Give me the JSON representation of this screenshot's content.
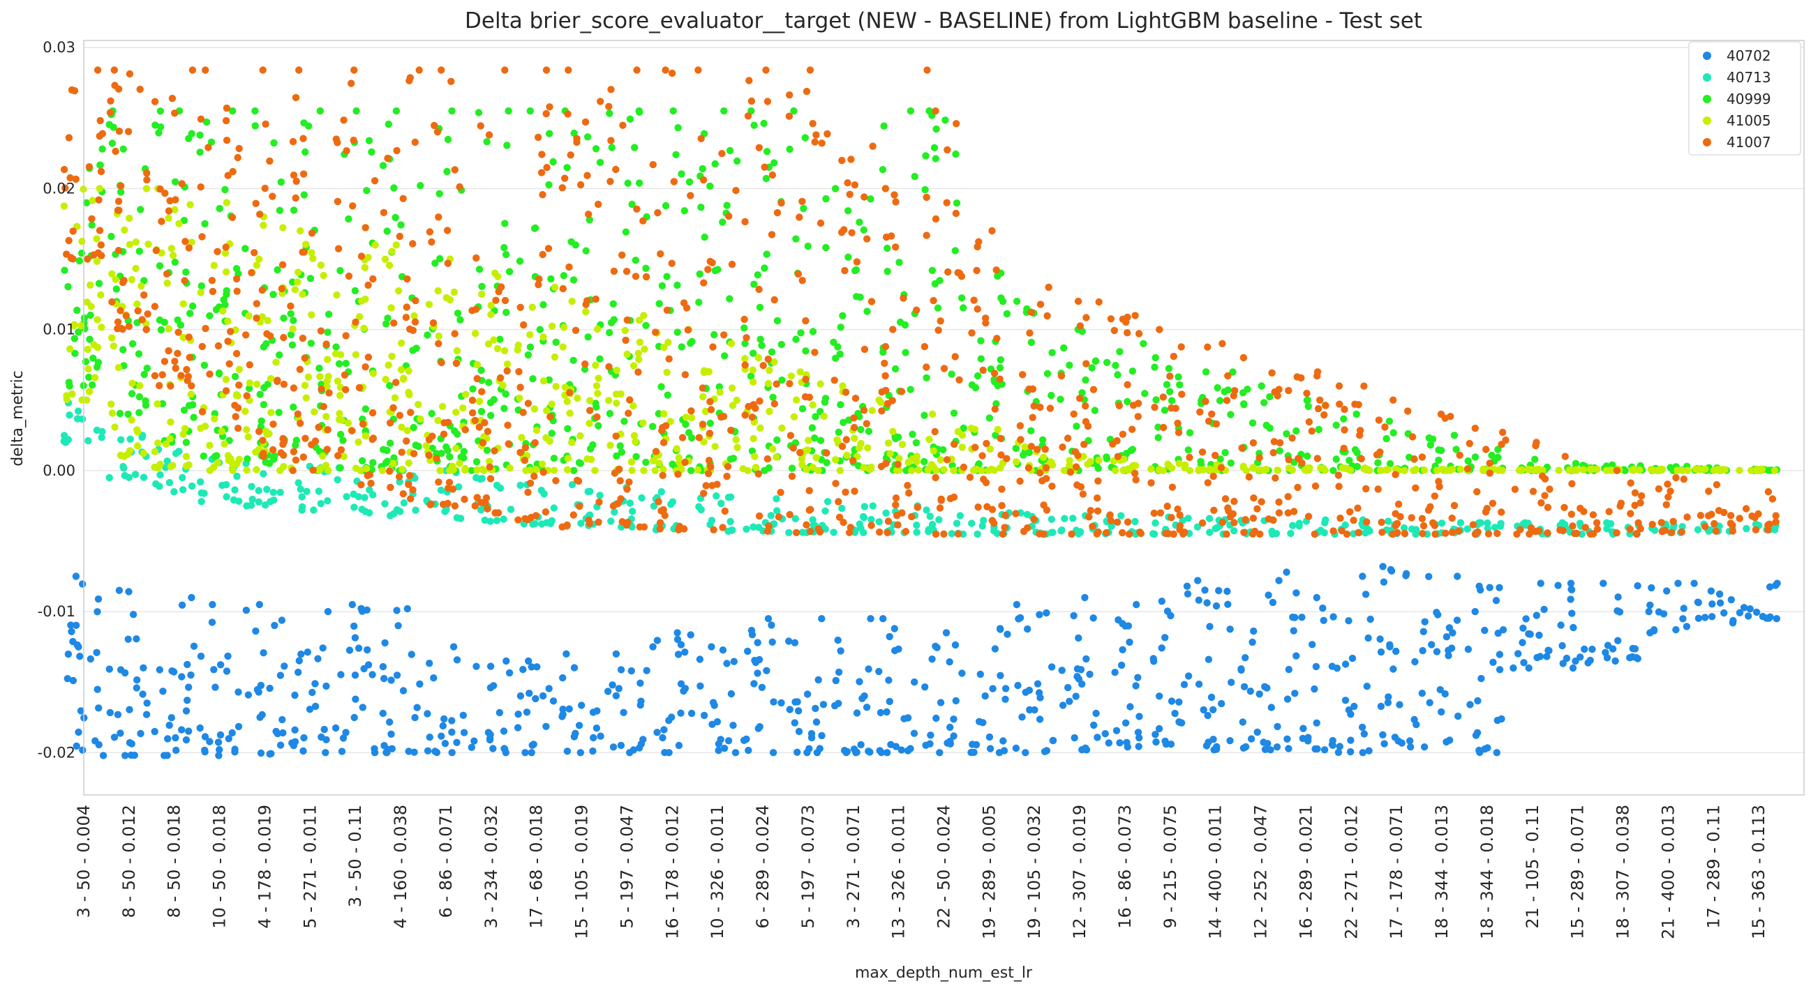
{
  "chart_data": {
    "type": "scatter",
    "title": "Delta brier_score_evaluator__target (NEW - BASELINE) from LightGBM baseline - Test set",
    "xlabel": "max_depth_num_est_lr",
    "ylabel": "delta_metric",
    "ylim": [
      -0.023,
      0.0305
    ],
    "yticks": [
      0.03,
      0.02,
      0.01,
      0.0,
      -0.01,
      -0.02
    ],
    "ytick_labels": [
      "0.03",
      "0.02",
      "0.01",
      "0.00",
      "-0.01",
      "-0.02"
    ],
    "grid": true,
    "legend_position": "top-right",
    "categories": [
      "3 - 50 - 0.004",
      "8 - 50 - 0.012",
      "8 - 50 - 0.018",
      "10 - 50 - 0.018",
      "4 - 178 - 0.019",
      "5 - 271 - 0.011",
      "3 - 50 - 0.11",
      "4 - 160 - 0.038",
      "6 - 86 - 0.071",
      "3 - 234 - 0.032",
      "17 - 68 - 0.018",
      "15 - 105 - 0.019",
      "5 - 197 - 0.047",
      "16 - 178 - 0.012",
      "10 - 326 - 0.011",
      "6 - 289 - 0.024",
      "5 - 197 - 0.073",
      "3 - 271 - 0.071",
      "13 - 326 - 0.011",
      "22 - 50 - 0.024",
      "19 - 289 - 0.005",
      "19 - 105 - 0.032",
      "12 - 307 - 0.019",
      "16 - 86 - 0.073",
      "9 - 215 - 0.075",
      "14 - 400 - 0.011",
      "12 - 252 - 0.047",
      "16 - 289 - 0.021",
      "22 - 271 - 0.012",
      "17 - 178 - 0.071",
      "18 - 344 - 0.013",
      "18 - 344 - 0.018",
      "21 - 105 - 0.11",
      "15 - 289 - 0.071",
      "18 - 307 - 0.038",
      "21 - 400 - 0.013",
      "17 - 289 - 0.11",
      "15 - 363 - 0.113"
    ],
    "series": [
      {
        "name": "40702",
        "color": "#1e88e5",
        "upper": [
          -0.0075,
          -0.0085,
          -0.009,
          -0.0095,
          -0.0095,
          -0.01,
          -0.0095,
          -0.0098,
          -0.0125,
          -0.0135,
          -0.0135,
          -0.013,
          -0.013,
          -0.0115,
          -0.0125,
          -0.0105,
          -0.0105,
          -0.0105,
          -0.0105,
          -0.0115,
          -0.0112,
          -0.0095,
          -0.009,
          -0.0095,
          -0.0082,
          -0.0078,
          -0.0078,
          -0.0072,
          -0.0075,
          -0.0068,
          -0.0075,
          -0.0082,
          -0.008,
          -0.008,
          -0.008,
          -0.008,
          -0.008,
          -0.008
        ],
        "lower": [
          -0.0202,
          -0.0202,
          -0.0202,
          -0.0202,
          -0.0201,
          -0.02,
          -0.02,
          -0.02,
          -0.02,
          -0.02,
          -0.02,
          -0.02,
          -0.02,
          -0.02,
          -0.02,
          -0.02,
          -0.02,
          -0.02,
          -0.02,
          -0.02,
          -0.02,
          -0.02,
          -0.0198,
          -0.0196,
          -0.0194,
          -0.0198,
          -0.0198,
          -0.0198,
          -0.02,
          -0.0196,
          -0.0196,
          -0.02,
          -0.014,
          -0.014,
          -0.0135,
          -0.0115,
          -0.0108,
          -0.0105
        ]
      },
      {
        "name": "40713",
        "color": "#1de9b6",
        "upper": [
          0.0048,
          0.0025,
          0.0015,
          0.0008,
          0.0005,
          0.0003,
          0.0002,
          0.0,
          0.0,
          -0.0005,
          -0.001,
          -0.001,
          -0.0012,
          -0.0015,
          -0.0018,
          -0.002,
          -0.0022,
          -0.0025,
          -0.0025,
          -0.0028,
          -0.003,
          -0.003,
          -0.0032,
          -0.0032,
          -0.0033,
          -0.0034,
          -0.0035,
          -0.0035,
          -0.0035,
          -0.0036,
          -0.0037,
          -0.0037,
          -0.0037,
          -0.0037,
          -0.0037,
          -0.0038,
          -0.0038,
          -0.0038
        ],
        "lower": [
          0.002,
          -0.0005,
          -0.0015,
          -0.0022,
          -0.0025,
          -0.0028,
          -0.003,
          -0.0032,
          -0.0034,
          -0.0036,
          -0.0038,
          -0.0039,
          -0.004,
          -0.0042,
          -0.0043,
          -0.0043,
          -0.0044,
          -0.0044,
          -0.0044,
          -0.0045,
          -0.0045,
          -0.0045,
          -0.0045,
          -0.0045,
          -0.0045,
          -0.0045,
          -0.0045,
          -0.0045,
          -0.0045,
          -0.0045,
          -0.0045,
          -0.0045,
          -0.0045,
          -0.0045,
          -0.0045,
          -0.0044,
          -0.0043,
          -0.0042
        ]
      },
      {
        "name": "40999",
        "color": "#22ee22",
        "upper": [
          0.0228,
          0.0255,
          0.0255,
          0.0255,
          0.0255,
          0.0255,
          0.0255,
          0.0255,
          0.0255,
          0.0255,
          0.0255,
          0.0255,
          0.0255,
          0.0255,
          0.0255,
          0.0255,
          0.0255,
          0.02,
          0.0255,
          0.0255,
          0.014,
          0.012,
          0.01,
          0.009,
          0.008,
          0.007,
          0.006,
          0.005,
          0.004,
          0.0035,
          0.0025,
          0.0015,
          0.0008,
          0.0005,
          0.0004,
          0.0003,
          0.0002,
          0.0001
        ],
        "lower": [
          0.006,
          0.004,
          0.002,
          0.001,
          0.0005,
          0.0,
          0.0,
          0.0,
          0.0,
          0.0,
          0.0,
          0.0,
          0.0,
          0.0,
          0.0,
          0.0,
          0.0,
          0.0,
          0.0,
          0.0,
          0.0,
          0.0,
          0.0,
          0.0,
          0.0,
          0.0,
          0.0,
          0.0,
          0.0,
          0.0,
          0.0,
          0.0,
          0.0,
          0.0,
          0.0,
          0.0,
          0.0,
          0.0
        ]
      },
      {
        "name": "41005",
        "color": "#c6ef00",
        "upper": [
          0.02,
          0.02,
          0.02,
          0.019,
          0.018,
          0.017,
          0.016,
          0.016,
          0.015,
          0.014,
          0.013,
          0.012,
          0.011,
          0.01,
          0.009,
          0.008,
          0.007,
          0.006,
          0.005,
          0.004,
          0.003,
          0.002,
          0.001,
          0.0008,
          0.0005,
          0.0004,
          0.0003,
          0.0002,
          0.0002,
          0.0001,
          0.0001,
          0.0001,
          0.0001,
          0.0001,
          0.0001,
          0.0001,
          0.0001,
          0.0001
        ],
        "lower": [
          0.005,
          0.001,
          0.0002,
          0.0,
          0.0,
          0.0,
          0.0,
          0.0,
          0.0,
          0.0,
          0.0,
          0.0,
          0.0,
          0.0,
          0.0,
          0.0,
          0.0,
          0.0,
          0.0,
          0.0,
          0.0,
          0.0,
          0.0,
          0.0,
          0.0,
          0.0,
          0.0,
          0.0,
          0.0,
          0.0,
          0.0,
          0.0,
          0.0,
          0.0,
          0.0,
          0.0,
          0.0,
          0.0
        ]
      },
      {
        "name": "41007",
        "color": "#ee6a10",
        "upper": [
          0.0284,
          0.0284,
          0.0284,
          0.0284,
          0.0284,
          0.0284,
          0.0284,
          0.0284,
          0.0284,
          0.0284,
          0.0284,
          0.0284,
          0.0284,
          0.0284,
          0.0284,
          0.0284,
          0.0284,
          0.023,
          0.02,
          0.0284,
          0.017,
          0.013,
          0.012,
          0.011,
          0.01,
          0.009,
          0.008,
          0.007,
          0.006,
          0.005,
          0.004,
          0.003,
          0.002,
          0.001,
          0.0,
          -0.0005,
          -0.001,
          -0.0015
        ],
        "lower": [
          0.015,
          0.01,
          0.006,
          0.003,
          0.001,
          0.0,
          -0.001,
          -0.002,
          -0.0025,
          -0.003,
          -0.0035,
          -0.004,
          -0.004,
          -0.0042,
          -0.0042,
          -0.0043,
          -0.0044,
          -0.0044,
          -0.0044,
          -0.0045,
          -0.0045,
          -0.0045,
          -0.0045,
          -0.0045,
          -0.0045,
          -0.0045,
          -0.0045,
          -0.0045,
          -0.0045,
          -0.0045,
          -0.0045,
          -0.0045,
          -0.0045,
          -0.0045,
          -0.0045,
          -0.0044,
          -0.0043,
          -0.0042
        ]
      }
    ]
  }
}
